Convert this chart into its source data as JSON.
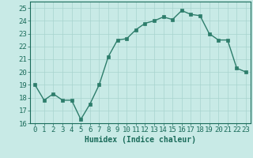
{
  "x": [
    0,
    1,
    2,
    3,
    4,
    5,
    6,
    7,
    8,
    9,
    10,
    11,
    12,
    13,
    14,
    15,
    16,
    17,
    18,
    19,
    20,
    21,
    22,
    23
  ],
  "y": [
    19.0,
    17.8,
    18.3,
    17.8,
    17.8,
    16.3,
    17.5,
    19.0,
    21.2,
    22.5,
    22.6,
    23.3,
    23.8,
    24.0,
    24.3,
    24.1,
    24.8,
    24.5,
    24.4,
    23.0,
    22.5,
    22.5,
    20.3,
    20.0
  ],
  "line_color": "#2d7d6b",
  "bg_color": "#c8eae6",
  "grid_color": "#a8d4cf",
  "axis_color": "#1a6b5a",
  "xlabel": "Humidex (Indice chaleur)",
  "ylim": [
    16,
    25.5
  ],
  "xlim": [
    -0.5,
    23.5
  ],
  "yticks": [
    16,
    17,
    18,
    19,
    20,
    21,
    22,
    23,
    24,
    25
  ],
  "xtick_labels": [
    "0",
    "1",
    "2",
    "3",
    "4",
    "5",
    "6",
    "7",
    "8",
    "9",
    "10",
    "11",
    "12",
    "13",
    "14",
    "15",
    "16",
    "17",
    "18",
    "19",
    "20",
    "21",
    "22",
    "23"
  ],
  "marker_size": 2.5,
  "line_width": 1.0,
  "font_size": 6.5
}
